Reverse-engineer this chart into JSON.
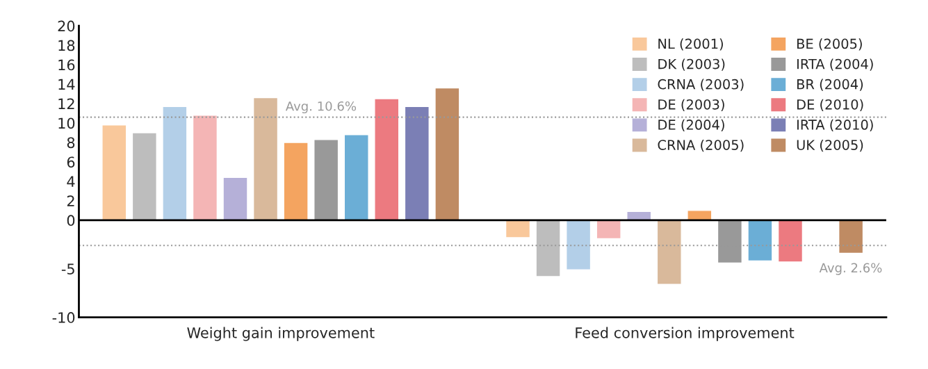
{
  "chart_data": {
    "type": "bar",
    "categories": [
      "Weight gain improvement",
      "Feed conversion improvement"
    ],
    "series": [
      {
        "name": "NL (2001)",
        "color": "#f9c89b",
        "values": [
          9.8,
          -1.8
        ]
      },
      {
        "name": "DK (2003)",
        "color": "#bdbdbd",
        "values": [
          9.0,
          -5.8
        ]
      },
      {
        "name": "CRNA (2003)",
        "color": "#b3cfe8",
        "values": [
          11.7,
          -5.1
        ]
      },
      {
        "name": "DE (2003)",
        "color": "#f4b5b5",
        "values": [
          10.8,
          -1.9
        ]
      },
      {
        "name": "DE (2004)",
        "color": "#b5b0d8",
        "values": [
          4.4,
          0.9
        ]
      },
      {
        "name": "CRNA (2005)",
        "color": "#d9b99b",
        "values": [
          12.6,
          -6.6
        ]
      },
      {
        "name": "BE (2005)",
        "color": "#f4a460",
        "values": [
          8.0,
          1.0
        ]
      },
      {
        "name": "IRTA (2004)",
        "color": "#999999",
        "values": [
          8.3,
          -4.4
        ]
      },
      {
        "name": "BR (2004)",
        "color": "#6baed6",
        "values": [
          8.8,
          -4.2
        ]
      },
      {
        "name": "DE (2010)",
        "color": "#ec7a80",
        "values": [
          12.5,
          -4.3
        ]
      },
      {
        "name": "IRTA (2010)",
        "color": "#7b7fb5",
        "values": [
          11.7,
          0.1
        ]
      },
      {
        "name": "UK (2005)",
        "color": "#bf8b63",
        "values": [
          13.6,
          -3.4
        ]
      }
    ],
    "ylim": [
      -10,
      20
    ],
    "yticks": [
      -10,
      -5,
      0,
      2,
      4,
      6,
      8,
      10,
      12,
      14,
      16,
      18,
      20
    ],
    "ref_lines": [
      {
        "axis": "y",
        "value": 0,
        "color": "#000000",
        "line_style": "solid"
      },
      {
        "axis": "y",
        "value": 10.6,
        "label": "Avg. 10.6%",
        "color": "#999999",
        "line_style": "dotted"
      },
      {
        "axis": "y",
        "value": -2.6,
        "label": "Avg. 2.6%",
        "color": "#999999",
        "line_style": "dotted"
      }
    ],
    "legend": "top right",
    "grid": false
  }
}
